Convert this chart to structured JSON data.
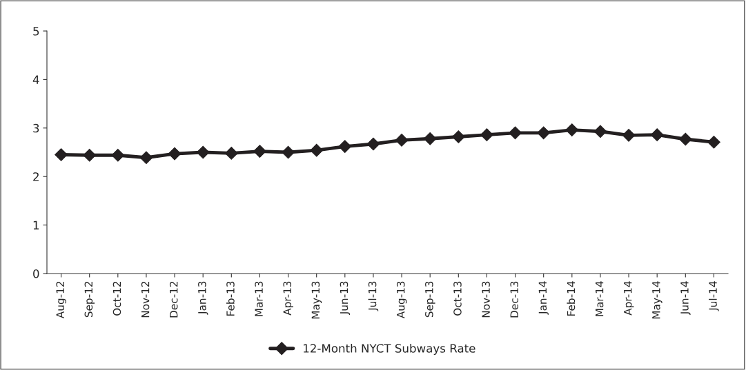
{
  "chart_data": {
    "type": "line",
    "categories": [
      "Aug-12",
      "Sep-12",
      "Oct-12",
      "Nov-12",
      "Dec-12",
      "Jan-13",
      "Feb-13",
      "Mar-13",
      "Apr-13",
      "May-13",
      "Jun-13",
      "Jul-13",
      "Aug-13",
      "Sep-13",
      "Oct-13",
      "Nov-13",
      "Dec-13",
      "Jan-14",
      "Feb-14",
      "Mar-14",
      "Apr-14",
      "May-14",
      "Jun-14",
      "Jul-14"
    ],
    "series": [
      {
        "name": "12-Month NYCT Subways Rate",
        "color": "#231f20",
        "values": [
          2.45,
          2.44,
          2.44,
          2.39,
          2.47,
          2.5,
          2.48,
          2.52,
          2.5,
          2.54,
          2.62,
          2.67,
          2.75,
          2.78,
          2.82,
          2.86,
          2.9,
          2.9,
          2.96,
          2.93,
          2.85,
          2.86,
          2.77,
          2.71
        ]
      }
    ],
    "ylim": [
      0,
      5
    ],
    "yticks": [
      0,
      1,
      2,
      3,
      4,
      5
    ],
    "marker": "diamond",
    "line_style": "solid",
    "legend": "bottom",
    "grid": false
  }
}
